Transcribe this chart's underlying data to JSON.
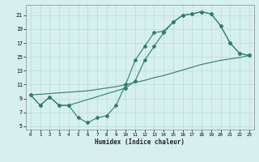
{
  "line1_x": [
    0,
    1,
    2,
    3,
    4,
    10,
    11,
    12,
    13,
    14,
    15,
    16,
    17,
    18,
    19,
    20,
    21,
    22,
    23
  ],
  "line1_y": [
    9.5,
    8.0,
    9.2,
    8.0,
    8.0,
    10.5,
    11.5,
    14.5,
    16.5,
    18.5,
    20.0,
    21.0,
    21.2,
    21.5,
    21.2,
    19.5,
    17.0,
    15.5,
    15.2
  ],
  "line2_x": [
    0,
    1,
    2,
    3,
    4,
    5,
    6,
    7,
    8,
    9,
    10,
    11,
    12,
    13,
    14,
    15,
    16,
    17,
    18,
    19,
    20,
    21,
    22,
    23
  ],
  "line2_y": [
    9.5,
    8.0,
    9.2,
    8.0,
    8.0,
    6.2,
    5.5,
    6.2,
    6.5,
    8.0,
    11.0,
    14.5,
    16.5,
    18.5,
    18.7,
    20.0,
    21.0,
    21.2,
    21.5,
    21.2,
    19.5,
    17.0,
    15.5,
    15.2
  ],
  "line3_x": [
    0,
    1,
    2,
    3,
    4,
    5,
    6,
    7,
    8,
    9,
    10,
    11,
    12,
    13,
    14,
    15,
    16,
    17,
    18,
    19,
    20,
    21,
    22,
    23
  ],
  "line3_y": [
    9.5,
    9.6,
    9.7,
    9.8,
    9.9,
    10.0,
    10.1,
    10.3,
    10.5,
    10.7,
    11.0,
    11.3,
    11.6,
    12.0,
    12.3,
    12.7,
    13.1,
    13.5,
    13.9,
    14.2,
    14.5,
    14.7,
    14.9,
    15.2
  ],
  "color": "#2e7d6e",
  "bg_color": "#d6f0ef",
  "grid_color": "#b8dbd8",
  "xlabel": "Humidex (Indice chaleur)",
  "xlim": [
    -0.5,
    23.5
  ],
  "ylim": [
    4.5,
    22.5
  ],
  "yticks": [
    5,
    7,
    9,
    11,
    13,
    15,
    17,
    19,
    21
  ],
  "xticks": [
    0,
    1,
    2,
    3,
    4,
    5,
    6,
    7,
    8,
    9,
    10,
    11,
    12,
    13,
    14,
    15,
    16,
    17,
    18,
    19,
    20,
    21,
    22,
    23
  ]
}
